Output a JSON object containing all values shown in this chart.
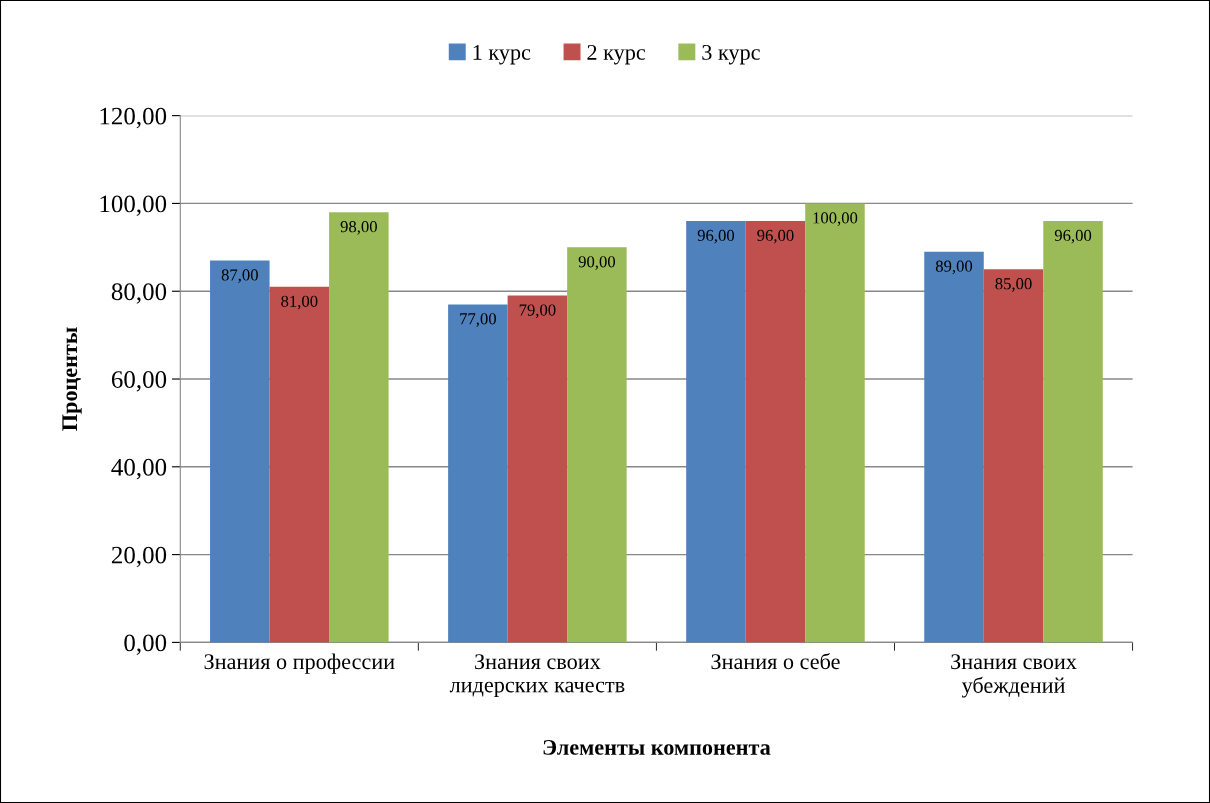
{
  "chart_data": {
    "type": "bar",
    "xlabel": "Элементы компонента",
    "ylabel": "Проценты",
    "categories": [
      "Знания о профессии",
      "Знания своих\nлидерских качеств",
      "Знания о себе",
      "Знания своих\nубеждений"
    ],
    "series": [
      {
        "name": "1 курс",
        "color": "#4f81bd",
        "values": [
          87,
          77,
          96,
          89
        ],
        "value_labels": [
          "87,00",
          "77,00",
          "96,00",
          "89,00"
        ]
      },
      {
        "name": "2 курс",
        "color": "#c0504d",
        "values": [
          81,
          79,
          96,
          85
        ],
        "value_labels": [
          "81,00",
          "79,00",
          "96,00",
          "85,00"
        ]
      },
      {
        "name": "3 курс",
        "color": "#9bbb59",
        "values": [
          98,
          90,
          100,
          96
        ],
        "value_labels": [
          "98,00",
          "90,00",
          "100,00",
          "96,00"
        ]
      }
    ],
    "ylim": [
      0,
      120
    ],
    "yticks": [
      {
        "value": 0,
        "label": "0,00"
      },
      {
        "value": 20,
        "label": "20,00"
      },
      {
        "value": 40,
        "label": "40,00"
      },
      {
        "value": 60,
        "label": "60,00"
      },
      {
        "value": 80,
        "label": "80,00"
      },
      {
        "value": 100,
        "label": "100,00"
      },
      {
        "value": 120,
        "label": "120,00"
      }
    ],
    "grid": "y",
    "legend": "top"
  }
}
